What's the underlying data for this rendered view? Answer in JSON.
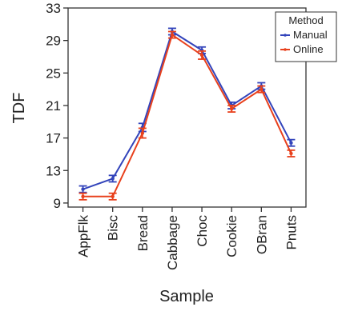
{
  "chart_data": {
    "type": "line",
    "title": "",
    "xlabel": "Sample",
    "ylabel": "TDF",
    "categories": [
      "AppFlk",
      "Bisc",
      "Bread",
      "Cabbage",
      "Choc",
      "Cookie",
      "OBran",
      "Pnuts"
    ],
    "ylim": [
      8.5,
      33
    ],
    "yticks": [
      "9",
      "13",
      "17",
      "21",
      "25",
      "29",
      "33"
    ],
    "grid": false,
    "legend": {
      "title": "Method",
      "placement": "top-right"
    },
    "series": [
      {
        "name": "Manual",
        "color": "#3344bb",
        "values": [
          10.7,
          12.0,
          18.3,
          30.1,
          27.8,
          21.0,
          23.4,
          16.4
        ],
        "error": [
          0.4,
          0.4,
          0.5,
          0.4,
          0.4,
          0.4,
          0.4,
          0.4
        ]
      },
      {
        "name": "Online",
        "color": "#e8401c",
        "values": [
          9.8,
          9.8,
          17.6,
          29.7,
          27.2,
          20.6,
          23.0,
          15.1
        ],
        "error": [
          0.4,
          0.4,
          0.6,
          0.4,
          0.5,
          0.4,
          0.4,
          0.4
        ]
      }
    ]
  }
}
